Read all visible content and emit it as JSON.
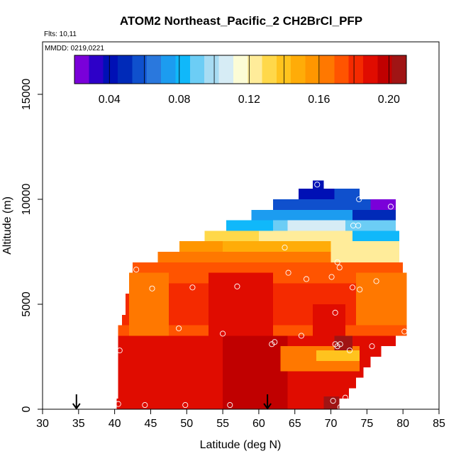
{
  "chart_data": {
    "type": "heatmap",
    "title": "ATOM2 Northeast_Pacific_2 CH2BrCl_PFP",
    "flights_text": "Flts: 10,11",
    "mmdd_text": "MMDD: 0219,0221",
    "xlabel": "Latitude (deg N)",
    "ylabel": "Altitude (m)",
    "xlim": [
      30,
      85
    ],
    "ylim": [
      0,
      17500
    ],
    "x_ticks": [
      30,
      35,
      40,
      45,
      50,
      55,
      60,
      65,
      70,
      75,
      80,
      85
    ],
    "y_ticks": [
      0,
      5000,
      10000,
      15000
    ],
    "colorbar": {
      "range": [
        0.02,
        0.21
      ],
      "tick_values": [
        0.04,
        0.08,
        0.12,
        0.16,
        0.2
      ],
      "tick_labels": [
        "0.04",
        "0.08",
        "0.12",
        "0.16",
        "0.20"
      ],
      "colors": [
        "#7a00d9",
        "#2d00c8",
        "#0010b5",
        "#002ab8",
        "#0f50cd",
        "#2a78dd",
        "#1c9cf0",
        "#10b8fa",
        "#6ccdf5",
        "#a8dcf3",
        "#d6ecf5",
        "#fcfcd6",
        "#ffec9a",
        "#ffd84a",
        "#ffc31e",
        "#ffac08",
        "#ff9600",
        "#ff7800",
        "#ff5400",
        "#f42a00",
        "#e00c00",
        "#c00000",
        "#a01414"
      ]
    },
    "arrows_lat": [
      34.7,
      61.2
    ],
    "rows": [
      {
        "alt0": 0,
        "alt1": 500,
        "x0": 40.3,
        "x1": 71.2,
        "value": 0.188
      },
      {
        "alt0": 500,
        "alt1": 1000,
        "x0": 40.5,
        "x1": 72.5,
        "value": 0.19
      },
      {
        "alt0": 1000,
        "alt1": 1500,
        "x0": 40.5,
        "x1": 73.5,
        "value": 0.189
      },
      {
        "alt0": 1500,
        "alt1": 2000,
        "x0": 40.5,
        "x1": 74.5,
        "value": 0.19
      },
      {
        "alt0": 2000,
        "alt1": 2500,
        "x0": 40.5,
        "x1": 75.5,
        "value": 0.188
      },
      {
        "alt0": 2500,
        "alt1": 3000,
        "x0": 40.5,
        "x1": 77.0,
        "value": 0.186
      },
      {
        "alt0": 3000,
        "alt1": 3500,
        "x0": 40.5,
        "x1": 79.0,
        "value": 0.19
      },
      {
        "alt0": 3500,
        "alt1": 4000,
        "x0": 40.5,
        "x1": 80.5,
        "value": 0.175
      },
      {
        "alt0": 4000,
        "alt1": 4500,
        "x0": 41.0,
        "x1": 80.5,
        "value": 0.18
      },
      {
        "alt0": 4500,
        "alt1": 5000,
        "x0": 41.5,
        "x1": 80.5,
        "value": 0.183
      },
      {
        "alt0": 5000,
        "alt1": 5500,
        "x0": 41.5,
        "x1": 80.5,
        "value": 0.184
      },
      {
        "alt0": 5500,
        "alt1": 6000,
        "x0": 42.0,
        "x1": 80.5,
        "value": 0.177
      },
      {
        "alt0": 6000,
        "alt1": 6500,
        "x0": 42.0,
        "x1": 80.5,
        "value": 0.175
      },
      {
        "alt0": 6500,
        "alt1": 7000,
        "x0": 42.5,
        "x1": 80.0,
        "value": 0.17
      },
      {
        "alt0": 7000,
        "alt1": 7500,
        "x0": 46.0,
        "x1": 79.5,
        "value": 0.162
      },
      {
        "alt0": 7500,
        "alt1": 8000,
        "x0": 49.0,
        "x1": 79.5,
        "value": 0.15
      },
      {
        "alt0": 8000,
        "alt1": 8500,
        "x0": 52.5,
        "x1": 79.5,
        "value": 0.12
      },
      {
        "alt0": 8500,
        "alt1": 9000,
        "x0": 55.5,
        "x1": 79.0,
        "value": 0.09
      },
      {
        "alt0": 9000,
        "alt1": 9500,
        "x0": 59.0,
        "x1": 79.0,
        "value": 0.075
      },
      {
        "alt0": 9500,
        "alt1": 10000,
        "x0": 62.0,
        "x1": 79.0,
        "value": 0.058
      },
      {
        "alt0": 10000,
        "alt1": 10500,
        "x0": 65.5,
        "x1": 74.0,
        "value": 0.04
      },
      {
        "alt0": 10500,
        "alt1": 10900,
        "x0": 67.5,
        "x1": 69.0,
        "value": 0.04
      }
    ],
    "patches": [
      {
        "alt0": 0,
        "alt1": 3500,
        "x0": 55.0,
        "x1": 64.0,
        "value": 0.196
      },
      {
        "alt0": 3500,
        "alt1": 6500,
        "x0": 53.0,
        "x1": 62.0,
        "value": 0.193
      },
      {
        "alt0": 3500,
        "alt1": 6500,
        "x0": 42.0,
        "x1": 47.5,
        "value": 0.168
      },
      {
        "alt0": 3000,
        "alt1": 5000,
        "x0": 67.5,
        "x1": 72.0,
        "value": 0.193
      },
      {
        "alt0": 1800,
        "alt1": 3000,
        "x0": 63.0,
        "x1": 74.0,
        "value": 0.162
      },
      {
        "alt0": 2300,
        "alt1": 2800,
        "x0": 68.0,
        "x1": 74.0,
        "value": 0.14
      },
      {
        "alt0": 4000,
        "alt1": 6500,
        "x0": 73.5,
        "x1": 80.5,
        "value": 0.166
      },
      {
        "alt0": 2800,
        "alt1": 3500,
        "x0": 70.5,
        "x1": 73.0,
        "value": 0.203
      },
      {
        "alt0": 0,
        "alt1": 600,
        "x0": 69.0,
        "x1": 71.2,
        "value": 0.205
      },
      {
        "alt0": 7000,
        "alt1": 7500,
        "x0": 46.0,
        "x1": 56.0,
        "value": 0.168
      },
      {
        "alt0": 7500,
        "alt1": 8000,
        "x0": 49.0,
        "x1": 55.0,
        "value": 0.158
      },
      {
        "alt0": 7000,
        "alt1": 8000,
        "x0": 70.0,
        "x1": 79.5,
        "value": 0.12
      },
      {
        "alt0": 8000,
        "alt1": 8500,
        "x0": 52.5,
        "x1": 60.0,
        "value": 0.13
      },
      {
        "alt0": 8000,
        "alt1": 8500,
        "x0": 73.0,
        "x1": 79.5,
        "value": 0.085
      },
      {
        "alt0": 8500,
        "alt1": 9000,
        "x0": 55.5,
        "x1": 62.0,
        "value": 0.085
      },
      {
        "alt0": 8500,
        "alt1": 9000,
        "x0": 64.0,
        "x1": 72.0,
        "value": 0.11
      },
      {
        "alt0": 9000,
        "alt1": 9500,
        "x0": 73.0,
        "x1": 79.0,
        "value": 0.05
      },
      {
        "alt0": 9500,
        "alt1": 10000,
        "x0": 75.5,
        "x1": 79.0,
        "value": 0.028
      },
      {
        "alt0": 10000,
        "alt1": 10500,
        "x0": 70.5,
        "x1": 74.0,
        "value": 0.055
      }
    ],
    "samples": [
      {
        "lat": 40.5,
        "alt": 250
      },
      {
        "lat": 44.2,
        "alt": 200
      },
      {
        "lat": 49.8,
        "alt": 200
      },
      {
        "lat": 56.0,
        "alt": 200
      },
      {
        "lat": 70.3,
        "alt": 400
      },
      {
        "lat": 71.3,
        "alt": 100
      },
      {
        "lat": 72.0,
        "alt": 550
      },
      {
        "lat": 40.7,
        "alt": 2800
      },
      {
        "lat": 61.8,
        "alt": 3100
      },
      {
        "lat": 62.2,
        "alt": 3200
      },
      {
        "lat": 65.9,
        "alt": 3500
      },
      {
        "lat": 70.6,
        "alt": 3100
      },
      {
        "lat": 70.9,
        "alt": 3000
      },
      {
        "lat": 71.3,
        "alt": 3100
      },
      {
        "lat": 72.6,
        "alt": 2800
      },
      {
        "lat": 75.7,
        "alt": 3000
      },
      {
        "lat": 80.2,
        "alt": 3700
      },
      {
        "lat": 48.9,
        "alt": 3850
      },
      {
        "lat": 55.0,
        "alt": 3600
      },
      {
        "lat": 70.6,
        "alt": 4600
      },
      {
        "lat": 45.2,
        "alt": 5750
      },
      {
        "lat": 50.8,
        "alt": 5800
      },
      {
        "lat": 57.0,
        "alt": 5850
      },
      {
        "lat": 70.1,
        "alt": 6300
      },
      {
        "lat": 73.0,
        "alt": 5800
      },
      {
        "lat": 74.0,
        "alt": 5700
      },
      {
        "lat": 76.3,
        "alt": 6100
      },
      {
        "lat": 43.0,
        "alt": 6650
      },
      {
        "lat": 64.1,
        "alt": 6500
      },
      {
        "lat": 66.6,
        "alt": 6200
      },
      {
        "lat": 70.9,
        "alt": 7000
      },
      {
        "lat": 71.2,
        "alt": 6750
      },
      {
        "lat": 63.6,
        "alt": 7700
      },
      {
        "lat": 73.1,
        "alt": 8750
      },
      {
        "lat": 73.8,
        "alt": 8750
      },
      {
        "lat": 73.9,
        "alt": 10000
      },
      {
        "lat": 78.3,
        "alt": 9650
      },
      {
        "lat": 68.1,
        "alt": 10700
      }
    ]
  }
}
